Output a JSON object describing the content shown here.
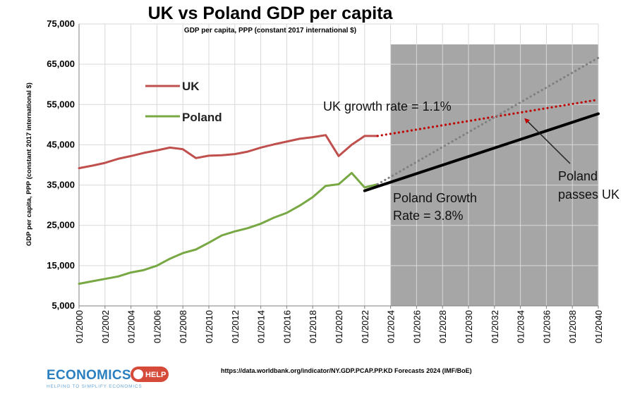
{
  "chart_data": {
    "type": "line",
    "title": "UK vs Poland GDP per capita",
    "subtitle": "GDP per capita, PPP (constant 2017 international $)",
    "ylabel": "GDP per capita, PPP (constant 2017 international $)",
    "xlabel": "",
    "ylim": [
      5000,
      75000
    ],
    "xlim": [
      2000,
      2040
    ],
    "yticks": [
      5000,
      15000,
      25000,
      35000,
      45000,
      55000,
      65000,
      75000
    ],
    "ytick_labels": [
      "5,000",
      "15,000",
      "25,000",
      "35,000",
      "45,000",
      "55,000",
      "65,000",
      "75,000"
    ],
    "xticks": [
      2000,
      2002,
      2004,
      2006,
      2008,
      2010,
      2012,
      2014,
      2016,
      2018,
      2020,
      2022,
      2024,
      2026,
      2028,
      2030,
      2032,
      2034,
      2036,
      2038,
      2040
    ],
    "xtick_labels": [
      "01/2000",
      "01/2002",
      "01/2004",
      "01/2006",
      "01/2008",
      "01/2010",
      "01/2012",
      "01/2014",
      "01/2016",
      "01/2018",
      "01/2020",
      "01/2022",
      "01/2024",
      "01/2026",
      "01/2028",
      "01/2030",
      "01/2032",
      "01/2034",
      "01/2036",
      "01/2038",
      "01/2040"
    ],
    "grid": true,
    "forecast_region": {
      "x_start": 2024,
      "x_end": 2040,
      "color": "#a6a6a6"
    },
    "series": [
      {
        "name": "UK",
        "color": "#c0504d",
        "x": [
          2000,
          2001,
          2002,
          2003,
          2004,
          2005,
          2006,
          2007,
          2008,
          2009,
          2010,
          2011,
          2012,
          2013,
          2014,
          2015,
          2016,
          2017,
          2018,
          2019,
          2020,
          2021,
          2022,
          2023
        ],
        "values": [
          39200,
          39800,
          40500,
          41500,
          42200,
          43000,
          43600,
          44300,
          43900,
          41700,
          42300,
          42400,
          42700,
          43300,
          44300,
          45100,
          45800,
          46500,
          46900,
          47400,
          42200,
          45000,
          47200,
          47200
        ]
      },
      {
        "name": "Poland",
        "color": "#77a843",
        "x": [
          2000,
          2001,
          2002,
          2003,
          2004,
          2005,
          2006,
          2007,
          2008,
          2009,
          2010,
          2011,
          2012,
          2013,
          2014,
          2015,
          2016,
          2017,
          2018,
          2019,
          2020,
          2021,
          2022,
          2023
        ],
        "values": [
          10500,
          11100,
          11700,
          12300,
          13300,
          13900,
          15000,
          16700,
          18100,
          19000,
          20700,
          22500,
          23500,
          24300,
          25400,
          26900,
          28100,
          29900,
          32000,
          34800,
          35200,
          38000,
          34400,
          35200
        ]
      },
      {
        "name": "UK forecast",
        "color": "#c00000",
        "style": "dotted",
        "x": [
          2023,
          2040
        ],
        "values": [
          47200,
          56200
        ]
      },
      {
        "name": "Poland forecast",
        "color": "#7f7f7f",
        "style": "dotted",
        "x": [
          2023,
          2040
        ],
        "values": [
          35200,
          66600
        ]
      },
      {
        "name": "trend",
        "color": "#000000",
        "style": "solid",
        "x": [
          2022,
          2040
        ],
        "values": [
          33600,
          52700
        ]
      }
    ],
    "legend": [
      {
        "label": "UK",
        "color": "#c0504d"
      },
      {
        "label": "Poland",
        "color": "#77a843"
      }
    ],
    "legend_position": "top-left",
    "annotations": {
      "uk_growth": "UK growth rate = 1.1%",
      "poland_growth_line1": "Poland Growth",
      "poland_growth_line2": "Rate = 3.8%",
      "passes_line1": "Poland",
      "passes_line2": "passes UK",
      "passes_arrow_target": {
        "x": 2034.2,
        "y": 52300
      },
      "passes_arrow_color": "#c00000"
    },
    "source": "https://data.worldbank.org/indicator/NY.GDP.PCAP.PP.KD Forecasts 2024 (IMF/BoE)"
  },
  "logo": {
    "text": "ECONOMICS",
    "badge": "HELP",
    "tagline": "HELPING TO SIMPLIFY ECONOMICS"
  }
}
